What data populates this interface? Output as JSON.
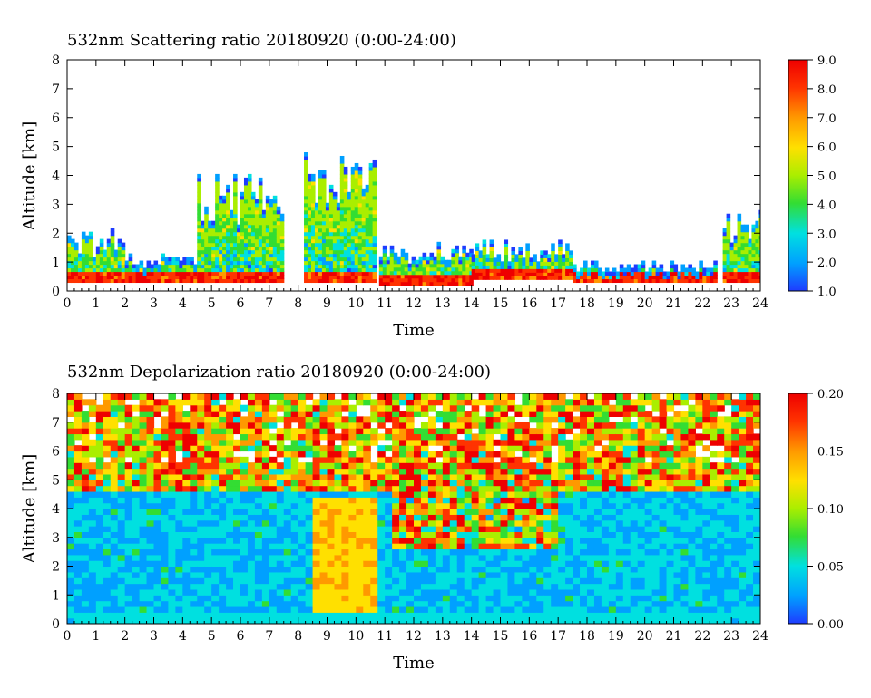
{
  "chart_data": [
    {
      "type": "heatmap",
      "title": "532nm Scattering ratio  20180920 (0:00-24:00)",
      "xlabel": "Time",
      "ylabel": "Altitude [km]",
      "xlim": [
        0,
        24
      ],
      "ylim": [
        0,
        8
      ],
      "x_ticks": [
        "0",
        "1",
        "2",
        "3",
        "4",
        "5",
        "6",
        "7",
        "8",
        "9",
        "10",
        "11",
        "12",
        "13",
        "14",
        "15",
        "16",
        "17",
        "18",
        "19",
        "20",
        "21",
        "22",
        "23",
        "24"
      ],
      "y_ticks": [
        "0",
        "1",
        "2",
        "3",
        "4",
        "5",
        "6",
        "7",
        "8"
      ],
      "colorbar": {
        "min": 1.0,
        "max": 9.0,
        "ticks": [
          "1.0",
          "2.0",
          "3.0",
          "4.0",
          "5.0",
          "6.0",
          "7.0",
          "8.0",
          "9.0"
        ],
        "colormap": [
          "#1e3cff",
          "#00a0ff",
          "#00e0e0",
          "#33dd33",
          "#aaee00",
          "#ffe000",
          "#ff9900",
          "#ff3300",
          "#ee0000"
        ]
      },
      "cloud_layers": [
        {
          "t_start": 0.0,
          "t_end": 2.0,
          "base_km": 0.3,
          "top_km": 2.1
        },
        {
          "t_start": 2.0,
          "t_end": 5.0,
          "base_km": 0.3,
          "top_km": 1.3
        },
        {
          "t_start": 4.5,
          "t_end": 7.5,
          "base_km": 0.3,
          "top_km": 4.0
        },
        {
          "t_start": 8.2,
          "t_end": 10.7,
          "base_km": 0.3,
          "top_km": 5.0
        },
        {
          "t_start": 10.8,
          "t_end": 14.0,
          "base_km": 0.2,
          "top_km": 1.6
        },
        {
          "t_start": 14.0,
          "t_end": 17.5,
          "base_km": 0.4,
          "top_km": 1.8
        },
        {
          "t_start": 17.5,
          "t_end": 22.5,
          "base_km": 0.3,
          "top_km": 1.0
        },
        {
          "t_start": 22.7,
          "t_end": 24.0,
          "base_km": 0.3,
          "top_km": 3.0
        }
      ]
    },
    {
      "type": "heatmap",
      "title": "532nm Depolarization ratio  20180920 (0:00-24:00)",
      "xlabel": "Time",
      "ylabel": "Altitude [km]",
      "xlim": [
        0,
        24
      ],
      "ylim": [
        0,
        8
      ],
      "x_ticks": [
        "0",
        "1",
        "2",
        "3",
        "4",
        "5",
        "6",
        "7",
        "8",
        "9",
        "10",
        "11",
        "12",
        "13",
        "14",
        "15",
        "16",
        "17",
        "18",
        "19",
        "20",
        "21",
        "22",
        "23",
        "24"
      ],
      "y_ticks": [
        "0",
        "1",
        "2",
        "3",
        "4",
        "5",
        "6",
        "7",
        "8"
      ],
      "colorbar": {
        "min": 0.0,
        "max": 0.2,
        "ticks": [
          "0.00",
          "0.05",
          "0.10",
          "0.15",
          "0.20"
        ],
        "colormap": [
          "#1e3cff",
          "#00a0ff",
          "#00e0e0",
          "#33dd33",
          "#aaee00",
          "#ffe000",
          "#ff9900",
          "#ff3300",
          "#ee0000"
        ]
      },
      "high_depol_region": {
        "t_start": 8.4,
        "t_end": 10.6,
        "base_km": 0.3,
        "top_km": 4.3
      }
    }
  ]
}
